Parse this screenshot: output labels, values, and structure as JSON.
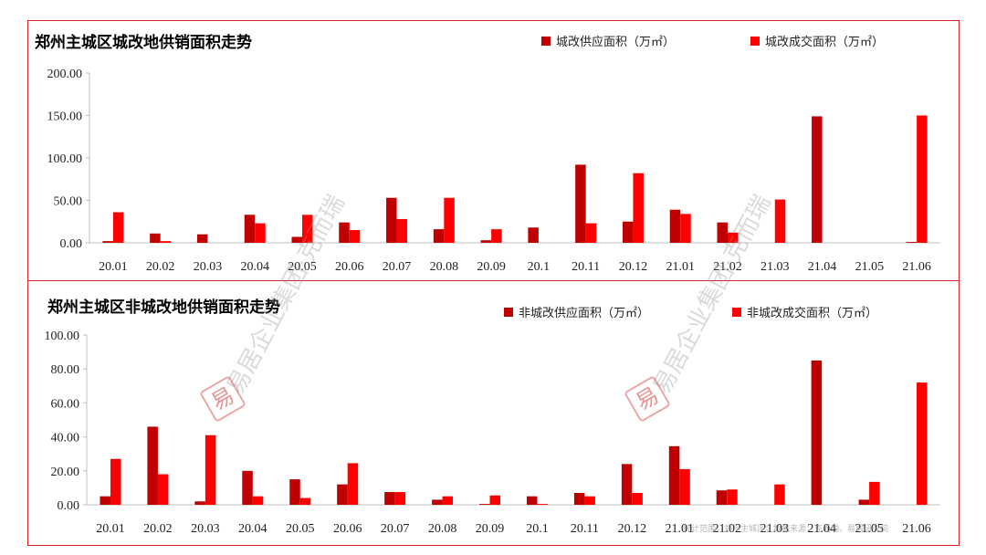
{
  "colors": {
    "supply": "#c00000",
    "deal": "#ff0000",
    "border": "#d9202a",
    "axis": "#bfbfbf",
    "text": "#000000"
  },
  "watermark": {
    "text": "易居企业集团·克而瑞",
    "seal": "易"
  },
  "source_note": "统计范围：郑州主城区；数据来源：克而瑞，易居研究院",
  "chart_data": [
    {
      "type": "bar",
      "title": "郑州主城区城改地供销面积走势",
      "categories": [
        "20.01",
        "20.02",
        "20.03",
        "20.04",
        "20.05",
        "20.06",
        "20.07",
        "20.08",
        "20.09",
        "20.1",
        "20.11",
        "20.12",
        "21.01",
        "21.02",
        "21.03",
        "21.04",
        "21.05",
        "21.06"
      ],
      "series": [
        {
          "name": "城改供应面积（万㎡）",
          "values": [
            2,
            11,
            10,
            33,
            7,
            24,
            53,
            16,
            3,
            18,
            92,
            25,
            39,
            24,
            0,
            149,
            0,
            1
          ]
        },
        {
          "name": "城改成交面积（万㎡）",
          "values": [
            36,
            2,
            0,
            23,
            33,
            15,
            28,
            53,
            16,
            0,
            23,
            82,
            34,
            12,
            51,
            0,
            0,
            150
          ]
        }
      ],
      "ylim": [
        0,
        200
      ],
      "yticks": [
        "0.00",
        "50.00",
        "100.00",
        "150.00",
        "200.00"
      ],
      "legend": "top-right"
    },
    {
      "type": "bar",
      "title": "郑州主城区非城改地供销面积走势",
      "categories": [
        "20.01",
        "20.02",
        "20.03",
        "20.04",
        "20.05",
        "20.06",
        "20.07",
        "20.08",
        "20.09",
        "20.1",
        "20.11",
        "20.12",
        "21.01",
        "21.02",
        "21.03",
        "21.04",
        "21.05",
        "21.06"
      ],
      "series": [
        {
          "name": "非城改供应面积（万㎡）",
          "values": [
            5,
            46,
            2,
            20,
            15,
            12,
            7.5,
            3,
            0.5,
            5,
            7,
            24,
            34.5,
            8.5,
            0,
            85,
            3,
            0
          ]
        },
        {
          "name": "非城改成交面积（万㎡）",
          "values": [
            27,
            18,
            41,
            5,
            4,
            24.5,
            7.5,
            5,
            5.5,
            0.5,
            5,
            7,
            21,
            9,
            12,
            0,
            13.5,
            72
          ]
        }
      ],
      "ylim": [
        0,
        100
      ],
      "yticks": [
        "0.00",
        "20.00",
        "40.00",
        "60.00",
        "80.00",
        "100.00"
      ],
      "legend": "top-right"
    }
  ]
}
